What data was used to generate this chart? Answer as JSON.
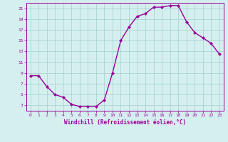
{
  "x": [
    0,
    1,
    2,
    3,
    4,
    5,
    6,
    7,
    8,
    9,
    10,
    11,
    12,
    13,
    14,
    15,
    16,
    17,
    18,
    19,
    20,
    21,
    22,
    23
  ],
  "y": [
    8.5,
    8.5,
    6.5,
    5.0,
    4.5,
    3.2,
    2.8,
    2.8,
    2.8,
    4.0,
    9.0,
    15.0,
    17.5,
    19.5,
    20.0,
    21.2,
    21.2,
    21.5,
    21.5,
    18.5,
    16.5,
    15.5,
    14.5,
    12.5
  ],
  "line_color": "#990099",
  "marker": "D",
  "marker_size": 2,
  "bg_color": "#d5efef",
  "grid_color": "#aad4d4",
  "xlabel": "Windchill (Refroidissement éolien,°C)",
  "xlabel_color": "#990099",
  "ylim": [
    2,
    22
  ],
  "xlim": [
    -0.5,
    23.5
  ],
  "yticks": [
    3,
    5,
    7,
    9,
    11,
    13,
    15,
    17,
    19,
    21
  ],
  "xticks": [
    0,
    1,
    2,
    3,
    4,
    5,
    6,
    7,
    8,
    9,
    10,
    11,
    12,
    13,
    14,
    15,
    16,
    17,
    18,
    19,
    20,
    21,
    22,
    23
  ],
  "tick_color": "#990099",
  "spine_color": "#990099",
  "line_width": 1.0
}
